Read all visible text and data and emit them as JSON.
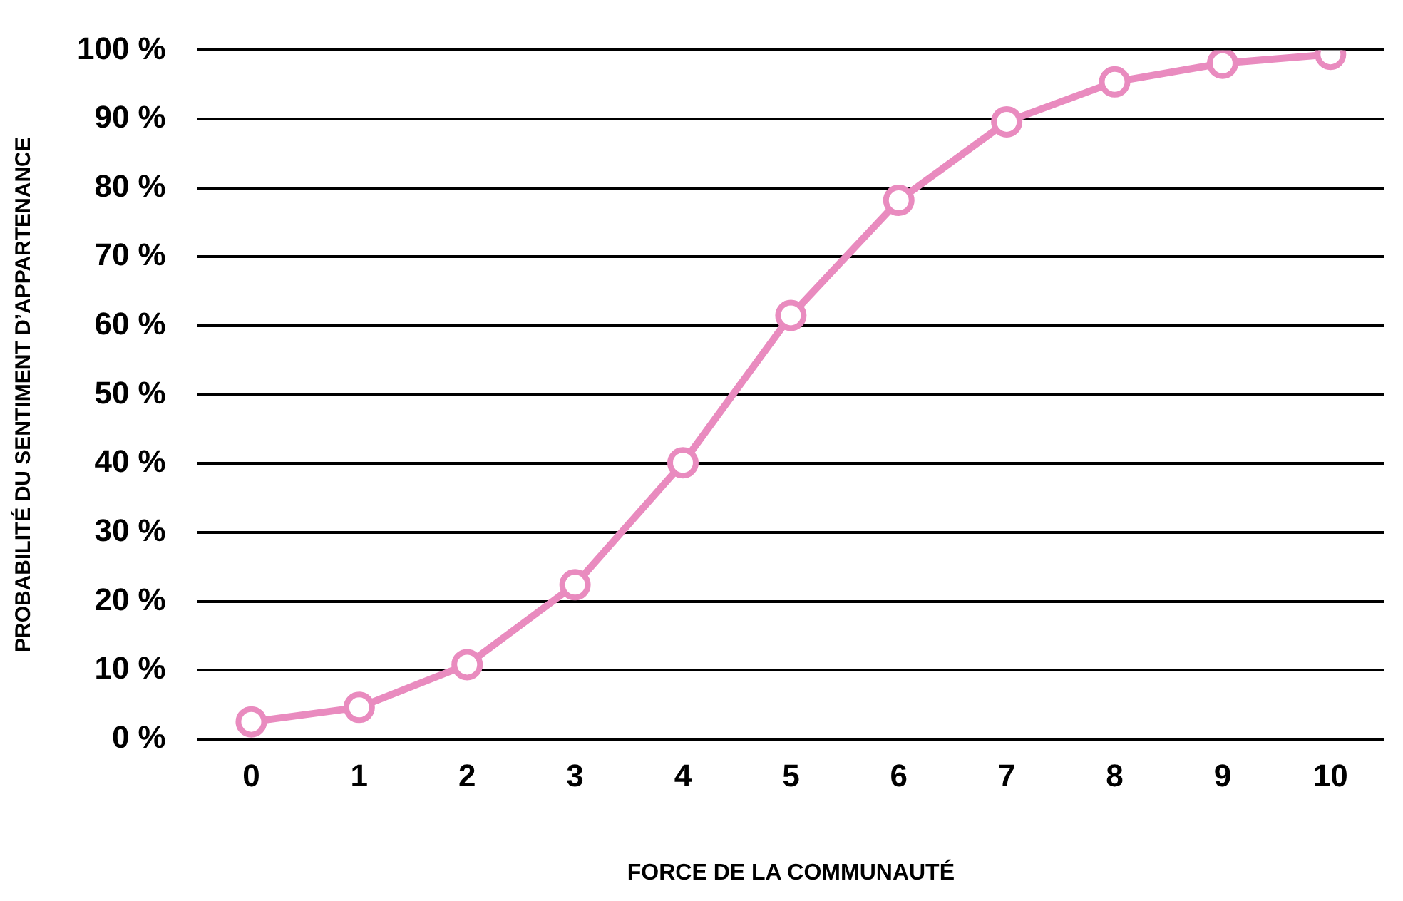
{
  "chart_data": {
    "type": "line",
    "xlabel": "FORCE DE LA COMMUNAUTÉ",
    "ylabel": "PROBABILITÉ DU SENTIMENT D’APPARTENANCE",
    "categories": [
      "0",
      "1",
      "2",
      "3",
      "4",
      "5",
      "6",
      "7",
      "8",
      "9",
      "10"
    ],
    "series": [
      {
        "color": "#e98bbf",
        "values": [
          2.5,
          4.6,
          10.8,
          22.4,
          40.1,
          61.5,
          78.2,
          89.6,
          95.4,
          98.1,
          99.4
        ]
      }
    ],
    "ylim": [
      0,
      100
    ],
    "yticks": [
      {
        "value": 0,
        "label": "0 %"
      },
      {
        "value": 10,
        "label": "10 %"
      },
      {
        "value": 20,
        "label": "20 %"
      },
      {
        "value": 30,
        "label": "30 %"
      },
      {
        "value": 40,
        "label": "40 %"
      },
      {
        "value": 50,
        "label": "50 %"
      },
      {
        "value": 60,
        "label": "60 %"
      },
      {
        "value": 70,
        "label": "70 %"
      },
      {
        "value": 80,
        "label": "80 %"
      },
      {
        "value": 90,
        "label": "90 %"
      },
      {
        "value": 100,
        "label": "100 %"
      }
    ],
    "grid": "y",
    "legend": false,
    "marker": "circle",
    "line_style": "solid"
  }
}
